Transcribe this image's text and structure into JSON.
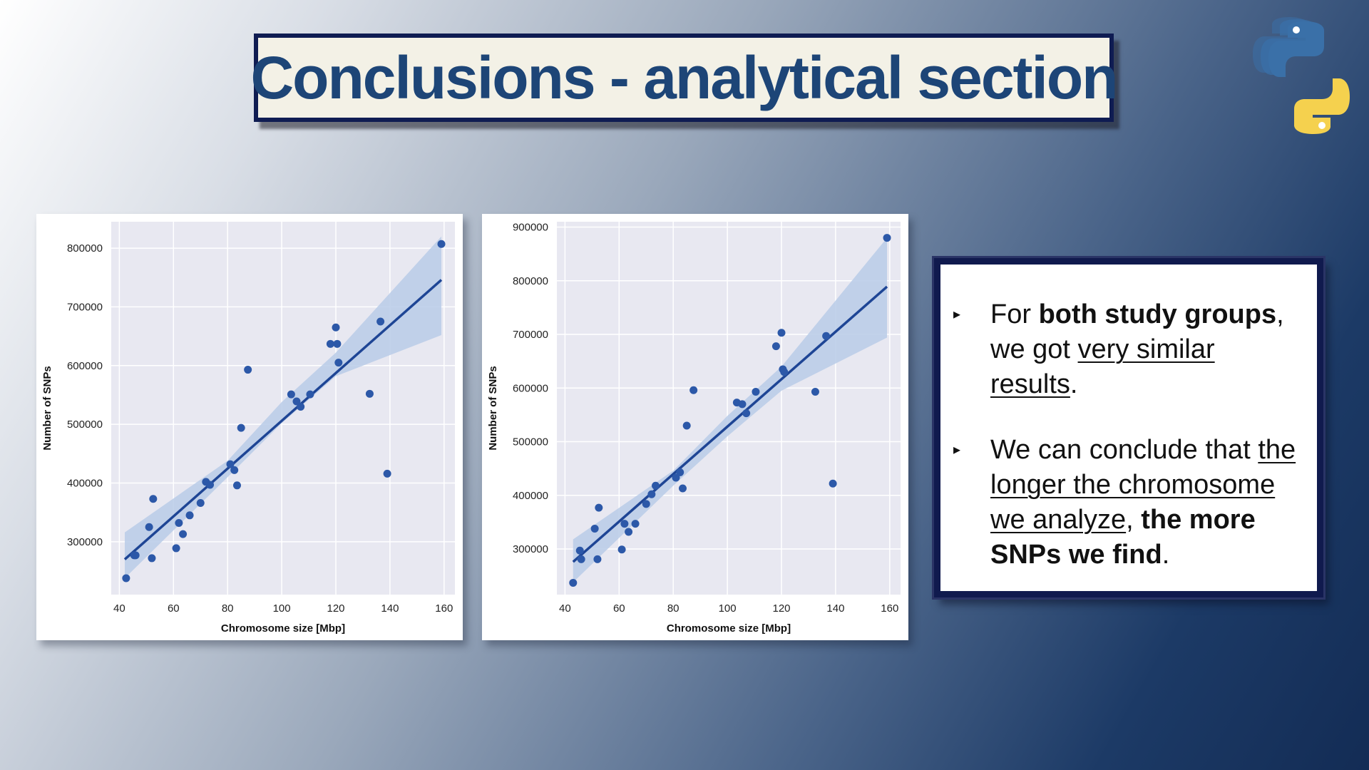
{
  "slide": {
    "title": "Conclusions - analytical section"
  },
  "logo": {
    "icon": "python-logo-icon",
    "colors": {
      "blue": "#3a70a8",
      "yellow": "#f5d14e"
    }
  },
  "colors": {
    "point": "#2c58a8",
    "line": "#1e4595",
    "band": "#b9cbe8",
    "plot_bg": "#e8e8f1",
    "grid": "#ffffff"
  },
  "bullets": [
    {
      "marker": "▸",
      "parts": {
        "p1": "For ",
        "p2": "both study groups",
        "p3": ",",
        "p4": "we got ",
        "p5": "very similar",
        "p6": "results",
        "p7": "."
      }
    },
    {
      "marker": "▸",
      "parts": {
        "p1": "We can conclude that ",
        "p2": "the",
        "p3": "longer the chromosome",
        "p4": "we analyze",
        "p5": ", ",
        "p6": "the more",
        "p7": "SNPs we find",
        "p8": "."
      }
    }
  ],
  "chart_data": [
    {
      "type": "scatter",
      "xlabel": "Chromosome size [Mbp]",
      "ylabel": "Number of SNPs",
      "xlim": [
        37,
        164
      ],
      "ylim": [
        210000,
        845000
      ],
      "xticks": [
        40,
        60,
        80,
        100,
        120,
        140,
        160
      ],
      "yticks": [
        300000,
        400000,
        500000,
        600000,
        700000,
        800000
      ],
      "grid": true,
      "regression": {
        "x": [
          42,
          159
        ],
        "y": [
          270000,
          746000
        ]
      },
      "confidence_band": {
        "x": [
          42,
          80,
          100,
          120,
          159
        ],
        "lower": [
          238000,
          410000,
          502000,
          582000,
          652000
        ],
        "upper": [
          316000,
          438000,
          538000,
          622000,
          820000
        ]
      },
      "points": [
        {
          "x": 42.5,
          "y": 238000
        },
        {
          "x": 45.5,
          "y": 277000
        },
        {
          "x": 46,
          "y": 277000
        },
        {
          "x": 51,
          "y": 325000
        },
        {
          "x": 52,
          "y": 272000
        },
        {
          "x": 52.5,
          "y": 373000
        },
        {
          "x": 61,
          "y": 289000
        },
        {
          "x": 62,
          "y": 332000
        },
        {
          "x": 63.5,
          "y": 313000
        },
        {
          "x": 66,
          "y": 345000
        },
        {
          "x": 70,
          "y": 366000
        },
        {
          "x": 72,
          "y": 402000
        },
        {
          "x": 73.5,
          "y": 397000
        },
        {
          "x": 81,
          "y": 432000
        },
        {
          "x": 82.5,
          "y": 422000
        },
        {
          "x": 83.5,
          "y": 396000
        },
        {
          "x": 85,
          "y": 494000
        },
        {
          "x": 87.5,
          "y": 593000
        },
        {
          "x": 103.5,
          "y": 551000
        },
        {
          "x": 105.5,
          "y": 539000
        },
        {
          "x": 107,
          "y": 530000
        },
        {
          "x": 110.5,
          "y": 551000
        },
        {
          "x": 118,
          "y": 637000
        },
        {
          "x": 120,
          "y": 665000
        },
        {
          "x": 120.5,
          "y": 637000
        },
        {
          "x": 121,
          "y": 605000
        },
        {
          "x": 132.5,
          "y": 552000
        },
        {
          "x": 136.5,
          "y": 675000
        },
        {
          "x": 139,
          "y": 416000
        },
        {
          "x": 159,
          "y": 807000
        }
      ]
    },
    {
      "type": "scatter",
      "xlabel": "Chromosome size [Mbp]",
      "ylabel": "Number of SNPs",
      "xlim": [
        37,
        164
      ],
      "ylim": [
        215000,
        910000
      ],
      "xticks": [
        40,
        60,
        80,
        100,
        120,
        140,
        160
      ],
      "yticks": [
        300000,
        400000,
        500000,
        600000,
        700000,
        800000,
        900000
      ],
      "grid": true,
      "regression": {
        "x": [
          43,
          159
        ],
        "y": [
          276000,
          789000
        ]
      },
      "confidence_band": {
        "x": [
          43,
          80,
          100,
          120,
          159
        ],
        "lower": [
          238000,
          418000,
          510000,
          595000,
          694000
        ],
        "upper": [
          318000,
          446000,
          548000,
          640000,
          880000
        ]
      },
      "points": [
        {
          "x": 43,
          "y": 237000
        },
        {
          "x": 45.5,
          "y": 297000
        },
        {
          "x": 46,
          "y": 281000
        },
        {
          "x": 51,
          "y": 338000
        },
        {
          "x": 52,
          "y": 281000
        },
        {
          "x": 52.5,
          "y": 377000
        },
        {
          "x": 61,
          "y": 299000
        },
        {
          "x": 62,
          "y": 347000
        },
        {
          "x": 63.5,
          "y": 332000
        },
        {
          "x": 66,
          "y": 347000
        },
        {
          "x": 70,
          "y": 384000
        },
        {
          "x": 72,
          "y": 402000
        },
        {
          "x": 73.5,
          "y": 418000
        },
        {
          "x": 81,
          "y": 433000
        },
        {
          "x": 82.5,
          "y": 443000
        },
        {
          "x": 83.5,
          "y": 413000
        },
        {
          "x": 85,
          "y": 530000
        },
        {
          "x": 87.5,
          "y": 596000
        },
        {
          "x": 103.5,
          "y": 573000
        },
        {
          "x": 105.5,
          "y": 570000
        },
        {
          "x": 107,
          "y": 553000
        },
        {
          "x": 110.5,
          "y": 593000
        },
        {
          "x": 118,
          "y": 678000
        },
        {
          "x": 120,
          "y": 703000
        },
        {
          "x": 120.5,
          "y": 635000
        },
        {
          "x": 121,
          "y": 630000
        },
        {
          "x": 132.5,
          "y": 593000
        },
        {
          "x": 136.5,
          "y": 697000
        },
        {
          "x": 139,
          "y": 422000
        },
        {
          "x": 159,
          "y": 880000
        }
      ]
    }
  ]
}
